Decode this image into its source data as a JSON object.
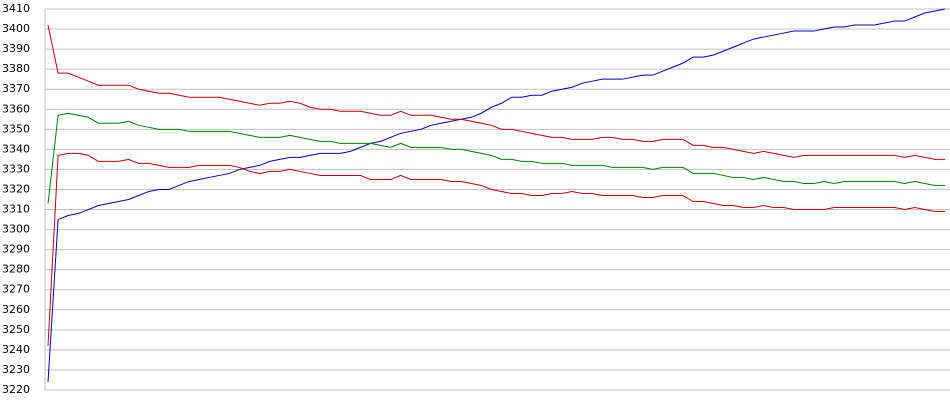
{
  "chart_data": {
    "type": "line",
    "ylim": [
      3220,
      3410
    ],
    "yticks": [
      3220,
      3230,
      3240,
      3250,
      3260,
      3270,
      3280,
      3290,
      3300,
      3310,
      3320,
      3330,
      3340,
      3350,
      3360,
      3370,
      3380,
      3390,
      3400,
      3410
    ],
    "grid": true,
    "series": [
      {
        "color": "#0000c0",
        "values": [
          3224,
          3305,
          3307,
          3308,
          3310,
          3312,
          3313,
          3314,
          3315,
          3317,
          3319,
          3320,
          3320,
          3322,
          3324,
          3325,
          3326,
          3327,
          3328,
          3330,
          3331,
          3332,
          3334,
          3335,
          3336,
          3336,
          3337,
          3338,
          3338,
          3338,
          3339,
          3341,
          3343,
          3344,
          3346,
          3348,
          3349,
          3350,
          3352,
          3353,
          3354,
          3355,
          3356,
          3358,
          3361,
          3363,
          3366,
          3366,
          3367,
          3367,
          3369,
          3370,
          3371,
          3373,
          3374,
          3375,
          3375,
          3375,
          3376,
          3377,
          3377,
          3379,
          3381,
          3383,
          3386,
          3386,
          3387,
          3389,
          3391,
          3393,
          3395,
          3396,
          3397,
          3398,
          3399,
          3399,
          3399,
          3400,
          3401,
          3401,
          3402,
          3402,
          3402,
          3403,
          3404,
          3404,
          3406,
          3408,
          3409,
          3410
        ]
      },
      {
        "color": "#c00000",
        "values": [
          3402,
          3378,
          3378,
          3376,
          3374,
          3372,
          3372,
          3372,
          3372,
          3370,
          3369,
          3368,
          3368,
          3367,
          3366,
          3366,
          3366,
          3366,
          3365,
          3364,
          3363,
          3362,
          3363,
          3363,
          3364,
          3363,
          3361,
          3360,
          3360,
          3359,
          3359,
          3359,
          3358,
          3357,
          3357,
          3359,
          3357,
          3357,
          3357,
          3356,
          3355,
          3355,
          3354,
          3353,
          3352,
          3350,
          3350,
          3349,
          3348,
          3347,
          3346,
          3346,
          3345,
          3345,
          3345,
          3346,
          3346,
          3345,
          3345,
          3344,
          3344,
          3345,
          3345,
          3345,
          3342,
          3342,
          3341,
          3341,
          3340,
          3339,
          3338,
          3339,
          3338,
          3337,
          3336,
          3337,
          3337,
          3337,
          3337,
          3337,
          3337,
          3337,
          3337,
          3337,
          3337,
          3336,
          3337,
          3336,
          3335,
          3335
        ]
      },
      {
        "color": "#008000",
        "values": [
          3313,
          3357,
          3358,
          3357,
          3356,
          3353,
          3353,
          3353,
          3354,
          3352,
          3351,
          3350,
          3350,
          3350,
          3349,
          3349,
          3349,
          3349,
          3349,
          3348,
          3347,
          3346,
          3346,
          3346,
          3347,
          3346,
          3345,
          3344,
          3344,
          3343,
          3343,
          3343,
          3343,
          3342,
          3341,
          3343,
          3341,
          3341,
          3341,
          3341,
          3340,
          3340,
          3339,
          3338,
          3337,
          3335,
          3335,
          3334,
          3334,
          3333,
          3333,
          3333,
          3332,
          3332,
          3332,
          3332,
          3331,
          3331,
          3331,
          3331,
          3330,
          3331,
          3331,
          3331,
          3328,
          3328,
          3328,
          3327,
          3326,
          3326,
          3325,
          3326,
          3325,
          3324,
          3324,
          3323,
          3323,
          3324,
          3323,
          3324,
          3324,
          3324,
          3324,
          3324,
          3324,
          3323,
          3324,
          3323,
          3322,
          3322
        ]
      },
      {
        "color": "#c00000",
        "values": [
          3242,
          3337,
          3338,
          3338,
          3337,
          3334,
          3334,
          3334,
          3335,
          3333,
          3333,
          3332,
          3331,
          3331,
          3331,
          3332,
          3332,
          3332,
          3332,
          3331,
          3329,
          3328,
          3329,
          3329,
          3330,
          3329,
          3328,
          3327,
          3327,
          3327,
          3327,
          3327,
          3325,
          3325,
          3325,
          3327,
          3325,
          3325,
          3325,
          3325,
          3324,
          3324,
          3323,
          3322,
          3320,
          3319,
          3318,
          3318,
          3317,
          3317,
          3318,
          3318,
          3319,
          3318,
          3318,
          3317,
          3317,
          3317,
          3317,
          3316,
          3316,
          3317,
          3317,
          3317,
          3314,
          3314,
          3313,
          3312,
          3312,
          3311,
          3311,
          3312,
          3311,
          3311,
          3310,
          3310,
          3310,
          3310,
          3311,
          3311,
          3311,
          3311,
          3311,
          3311,
          3311,
          3310,
          3311,
          3310,
          3309,
          3309
        ]
      }
    ]
  }
}
